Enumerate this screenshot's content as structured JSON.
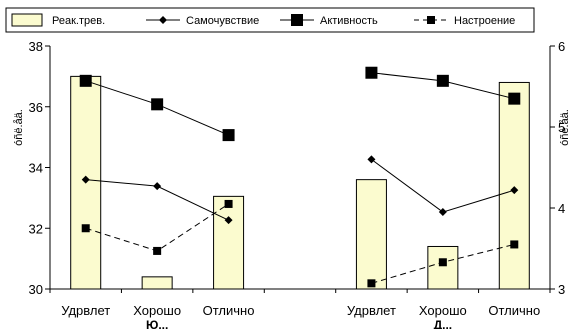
{
  "chart_data": {
    "type": "bar",
    "categories": [
      "Удрвлет",
      "Хорошо",
      "Отлично",
      "",
      "Удрвлет",
      "Хорошо",
      "Отлично"
    ],
    "group_labels": [
      "Ю...",
      "Д..."
    ],
    "ylabel_left": "óñë.åä.",
    "ylabel_right": "óñë.åä.",
    "ylim_left": [
      30,
      38
    ],
    "ylim_right": [
      3,
      6
    ],
    "yticks_left": [
      30,
      32,
      34,
      36,
      38
    ],
    "yticks_right": [
      3,
      4,
      5,
      6
    ],
    "legend_position": "top",
    "grid": false,
    "series": [
      {
        "name": "Реак.трев.",
        "kind": "bar",
        "axis": "left",
        "values": [
          37.0,
          30.4,
          33.05,
          null,
          33.6,
          31.4,
          36.8
        ]
      },
      {
        "name": "Самочувствие",
        "kind": "line-diamond",
        "axis": "right",
        "values": [
          4.35,
          4.27,
          3.85,
          null,
          4.6,
          3.95,
          4.22
        ]
      },
      {
        "name": "Активность",
        "kind": "line-square",
        "axis": "right",
        "values": [
          5.57,
          5.28,
          4.9,
          null,
          5.67,
          5.57,
          5.35
        ]
      },
      {
        "name": "Настроение",
        "kind": "dashed-square",
        "axis": "right",
        "values": [
          3.75,
          3.47,
          4.05,
          null,
          3.07,
          3.33,
          3.55
        ]
      }
    ]
  }
}
